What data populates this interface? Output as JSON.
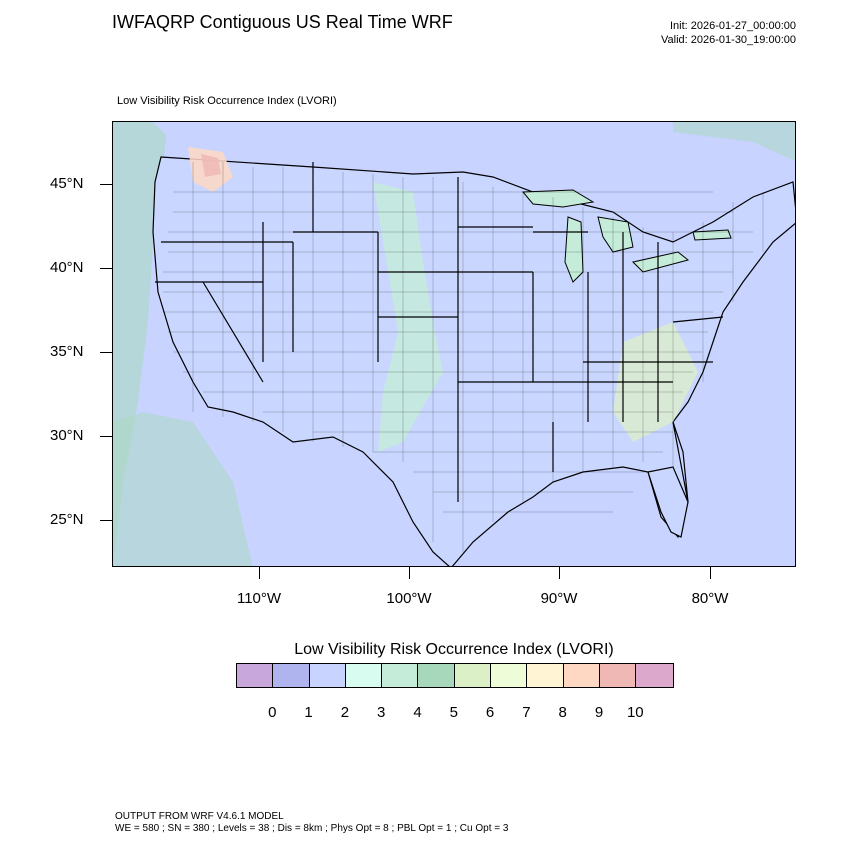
{
  "header": {
    "title": "IWFAQRP Contiguous US Real Time WRF",
    "init": "Init: 2026-01-27_00:00:00",
    "valid": "Valid: 2026-01-30_19:00:00"
  },
  "plot": {
    "field_label": "Low Visibility Risk Occurrence Index   (LVORI)"
  },
  "axes": {
    "latitude_labels": [
      "45°N",
      "40°N",
      "35°N",
      "30°N",
      "25°N"
    ],
    "longitude_labels": [
      "110°W",
      "100°W",
      "90°W",
      "80°W"
    ]
  },
  "legend": {
    "title": "Low Visibility Risk Occurrence Index  (LVORI)",
    "labels": [
      "0",
      "1",
      "2",
      "3",
      "4",
      "5",
      "6",
      "7",
      "8",
      "9",
      "10"
    ],
    "colors": [
      "#c8a8dc",
      "#b0b4ee",
      "#c8d4ff",
      "#d8fcf0",
      "#c4ecd8",
      "#a8d8bc",
      "#dcf0c8",
      "#eefcd8",
      "#fff4d4",
      "#ffd8c4",
      "#f0b8b4",
      "#dca8cc"
    ]
  },
  "map": {
    "land_base_color": "#c9d6ff",
    "water_color": "#c8d4ff",
    "boundary_color": "#000000"
  },
  "footer": {
    "line1": "OUTPUT FROM WRF V4.6.1 MODEL",
    "line2": "WE = 580 ; SN = 380 ; Levels = 38 ; Dis = 8km ; Phys Opt = 8 ; PBL Opt = 1 ; Cu Opt = 3"
  }
}
